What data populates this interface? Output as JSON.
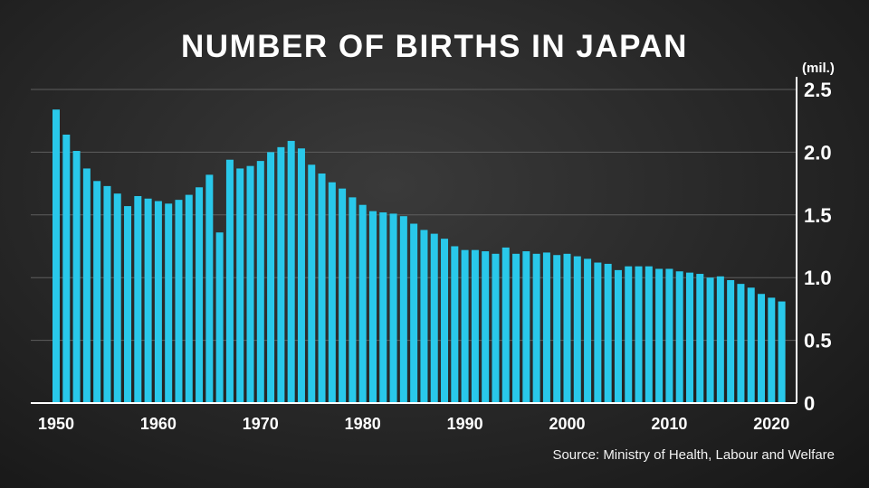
{
  "chart_data": {
    "type": "bar",
    "title": "NUMBER OF BIRTHS IN JAPAN",
    "unit_label": "(mil.)",
    "source": "Source: Ministry of Health, Labour and Welfare",
    "x": [
      1950,
      1951,
      1952,
      1953,
      1954,
      1955,
      1956,
      1957,
      1958,
      1959,
      1960,
      1961,
      1962,
      1963,
      1964,
      1965,
      1966,
      1967,
      1968,
      1969,
      1970,
      1971,
      1972,
      1973,
      1974,
      1975,
      1976,
      1977,
      1978,
      1979,
      1980,
      1981,
      1982,
      1983,
      1984,
      1985,
      1986,
      1987,
      1988,
      1989,
      1990,
      1991,
      1992,
      1993,
      1994,
      1995,
      1996,
      1997,
      1998,
      1999,
      2000,
      2001,
      2002,
      2003,
      2004,
      2005,
      2006,
      2007,
      2008,
      2009,
      2010,
      2011,
      2012,
      2013,
      2014,
      2015,
      2016,
      2017,
      2018,
      2019,
      2020,
      2021
    ],
    "values": [
      2.34,
      2.14,
      2.01,
      1.87,
      1.77,
      1.73,
      1.67,
      1.57,
      1.65,
      1.63,
      1.61,
      1.59,
      1.62,
      1.66,
      1.72,
      1.82,
      1.36,
      1.94,
      1.87,
      1.89,
      1.93,
      2.0,
      2.04,
      2.09,
      2.03,
      1.9,
      1.83,
      1.76,
      1.71,
      1.64,
      1.58,
      1.53,
      1.52,
      1.51,
      1.49,
      1.43,
      1.38,
      1.35,
      1.31,
      1.25,
      1.22,
      1.22,
      1.21,
      1.19,
      1.24,
      1.19,
      1.21,
      1.19,
      1.2,
      1.18,
      1.19,
      1.17,
      1.15,
      1.12,
      1.11,
      1.06,
      1.09,
      1.09,
      1.09,
      1.07,
      1.07,
      1.05,
      1.04,
      1.03,
      1.0,
      1.01,
      0.98,
      0.95,
      0.92,
      0.87,
      0.84,
      0.81
    ],
    "ylim": [
      0,
      2.5
    ],
    "y_ticks": [
      "2.5",
      "2.0",
      "1.5",
      "1.0",
      "0.5",
      "0"
    ],
    "y_tick_values": [
      2.5,
      2.0,
      1.5,
      1.0,
      0.5,
      0
    ],
    "x_ticks": [
      "1950",
      "1960",
      "1970",
      "1980",
      "1990",
      "2000",
      "2010",
      "2020"
    ],
    "x_tick_values": [
      1950,
      1960,
      1970,
      1980,
      1990,
      2000,
      2010,
      2020
    ],
    "grid": true,
    "colors": {
      "bar": "#29c8ea",
      "grid": "#5e5e5e",
      "axis": "#ffffff",
      "text": "#ffffff"
    }
  }
}
